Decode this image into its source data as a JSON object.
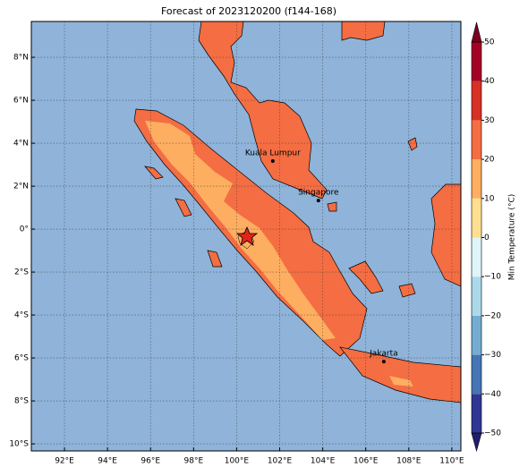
{
  "title": "Forecast of 2023120200 (f144-168)",
  "map": {
    "lon_range": [
      90.46,
      110.42
    ],
    "lat_range": [
      -10.33,
      9.67
    ],
    "lon_ticks": [
      {
        "value": 92,
        "label": "92°E"
      },
      {
        "value": 94,
        "label": "94°E"
      },
      {
        "value": 96,
        "label": "96°E"
      },
      {
        "value": 98,
        "label": "98°E"
      },
      {
        "value": 100,
        "label": "100°E"
      },
      {
        "value": 102,
        "label": "102°E"
      },
      {
        "value": 104,
        "label": "104°E"
      },
      {
        "value": 106,
        "label": "106°E"
      },
      {
        "value": 108,
        "label": "108°E"
      },
      {
        "value": 110,
        "label": "110°E"
      }
    ],
    "lat_ticks": [
      {
        "value": 8,
        "label": "8°N"
      },
      {
        "value": 6,
        "label": "6°N"
      },
      {
        "value": 4,
        "label": "4°N"
      },
      {
        "value": 2,
        "label": "2°N"
      },
      {
        "value": 0,
        "label": "0°"
      },
      {
        "value": -2,
        "label": "2°S"
      },
      {
        "value": -4,
        "label": "4°S"
      },
      {
        "value": -6,
        "label": "6°S"
      },
      {
        "value": -8,
        "label": "8°S"
      },
      {
        "value": -10,
        "label": "10°S"
      }
    ],
    "grid": true,
    "cities": [
      {
        "name": "Kuala Lumpur",
        "lon": 101.68,
        "lat": 3.17
      },
      {
        "name": "Singapore",
        "lon": 103.8,
        "lat": 1.33
      },
      {
        "name": "Jakarta",
        "lon": 106.84,
        "lat": -6.17
      }
    ]
  },
  "colorbar": {
    "label": "Min Temperature (°C)",
    "ticks": [
      {
        "value": -50,
        "label": "−50"
      },
      {
        "value": -40,
        "label": "−40"
      },
      {
        "value": -30,
        "label": "−30"
      },
      {
        "value": -20,
        "label": "−20"
      },
      {
        "value": -10,
        "label": "−10"
      },
      0,
      10,
      20,
      30,
      40,
      50
    ],
    "colors": [
      "#313695",
      "#4575b4",
      "#74add1",
      "#abd9e9",
      "#e0f3f8",
      "#fee090",
      "#fdae61",
      "#f46d43",
      "#d73027",
      "#a50026"
    ],
    "extend_colors": [
      "#1f1f6e",
      "#7a0020"
    ]
  }
}
